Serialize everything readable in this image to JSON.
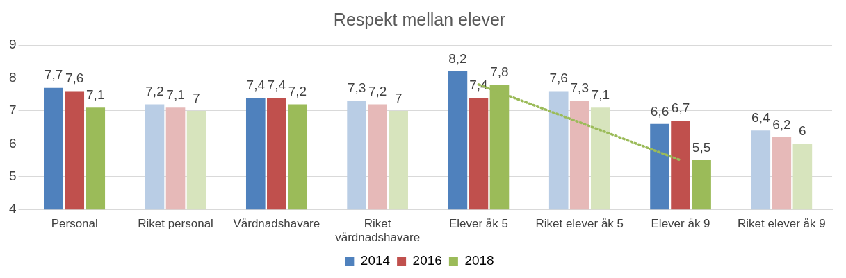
{
  "chart_data": {
    "type": "bar",
    "title": "Respekt mellan elever",
    "categories": [
      "Personal",
      "Riket personal",
      "Vårdnadshavare",
      "Riket vårdnadshavare",
      "Elever åk 5",
      "Riket elever åk 5",
      "Elever åk 9",
      "Riket elever åk 9"
    ],
    "series": [
      {
        "name": "2014",
        "color": "#4f81bd",
        "colors": [
          "#4f81bd",
          "#b9cde5",
          "#4f81bd",
          "#b9cde5",
          "#4f81bd",
          "#b9cde5",
          "#4f81bd",
          "#b9cde5"
        ],
        "values": [
          7.7,
          7.2,
          7.4,
          7.3,
          8.2,
          7.6,
          6.6,
          6.4
        ],
        "value_labels": [
          "7,7",
          "7,2",
          "7,4",
          "7,3",
          "8,2",
          "7,6",
          "6,6",
          "6,4"
        ]
      },
      {
        "name": "2016",
        "color": "#c0504d",
        "colors": [
          "#c0504d",
          "#e6b9b8",
          "#c0504d",
          "#e6b9b8",
          "#c0504d",
          "#e6b9b8",
          "#c0504d",
          "#e6b9b8"
        ],
        "values": [
          7.6,
          7.1,
          7.4,
          7.2,
          7.4,
          7.3,
          6.7,
          6.2
        ],
        "value_labels": [
          "7,6",
          "7,1",
          "7,4",
          "7,2",
          "7,4",
          "7,3",
          "6,7",
          "6,2"
        ]
      },
      {
        "name": "2018",
        "color": "#9bbb59",
        "colors": [
          "#9bbb59",
          "#d7e4bd",
          "#9bbb59",
          "#d7e4bd",
          "#9bbb59",
          "#d7e4bd",
          "#9bbb59",
          "#d7e4bd"
        ],
        "values": [
          7.1,
          7,
          7.2,
          7,
          7.8,
          7.1,
          5.5,
          6
        ],
        "value_labels": [
          "7,1",
          "7",
          "7,2",
          "7",
          "7,8",
          "7,1",
          "5,5",
          "6"
        ]
      },
      {
        "type": "line",
        "color": "#9bbb59",
        "line_style": "dotted",
        "x": [
          "Elever åk 5",
          "Elever åk 9"
        ],
        "values": [
          7.8,
          5.5
        ]
      }
    ],
    "ylim": [
      4,
      9
    ],
    "yticks": [
      4,
      5,
      6,
      7,
      8,
      9
    ],
    "grid": "y",
    "legend": "bottom"
  }
}
